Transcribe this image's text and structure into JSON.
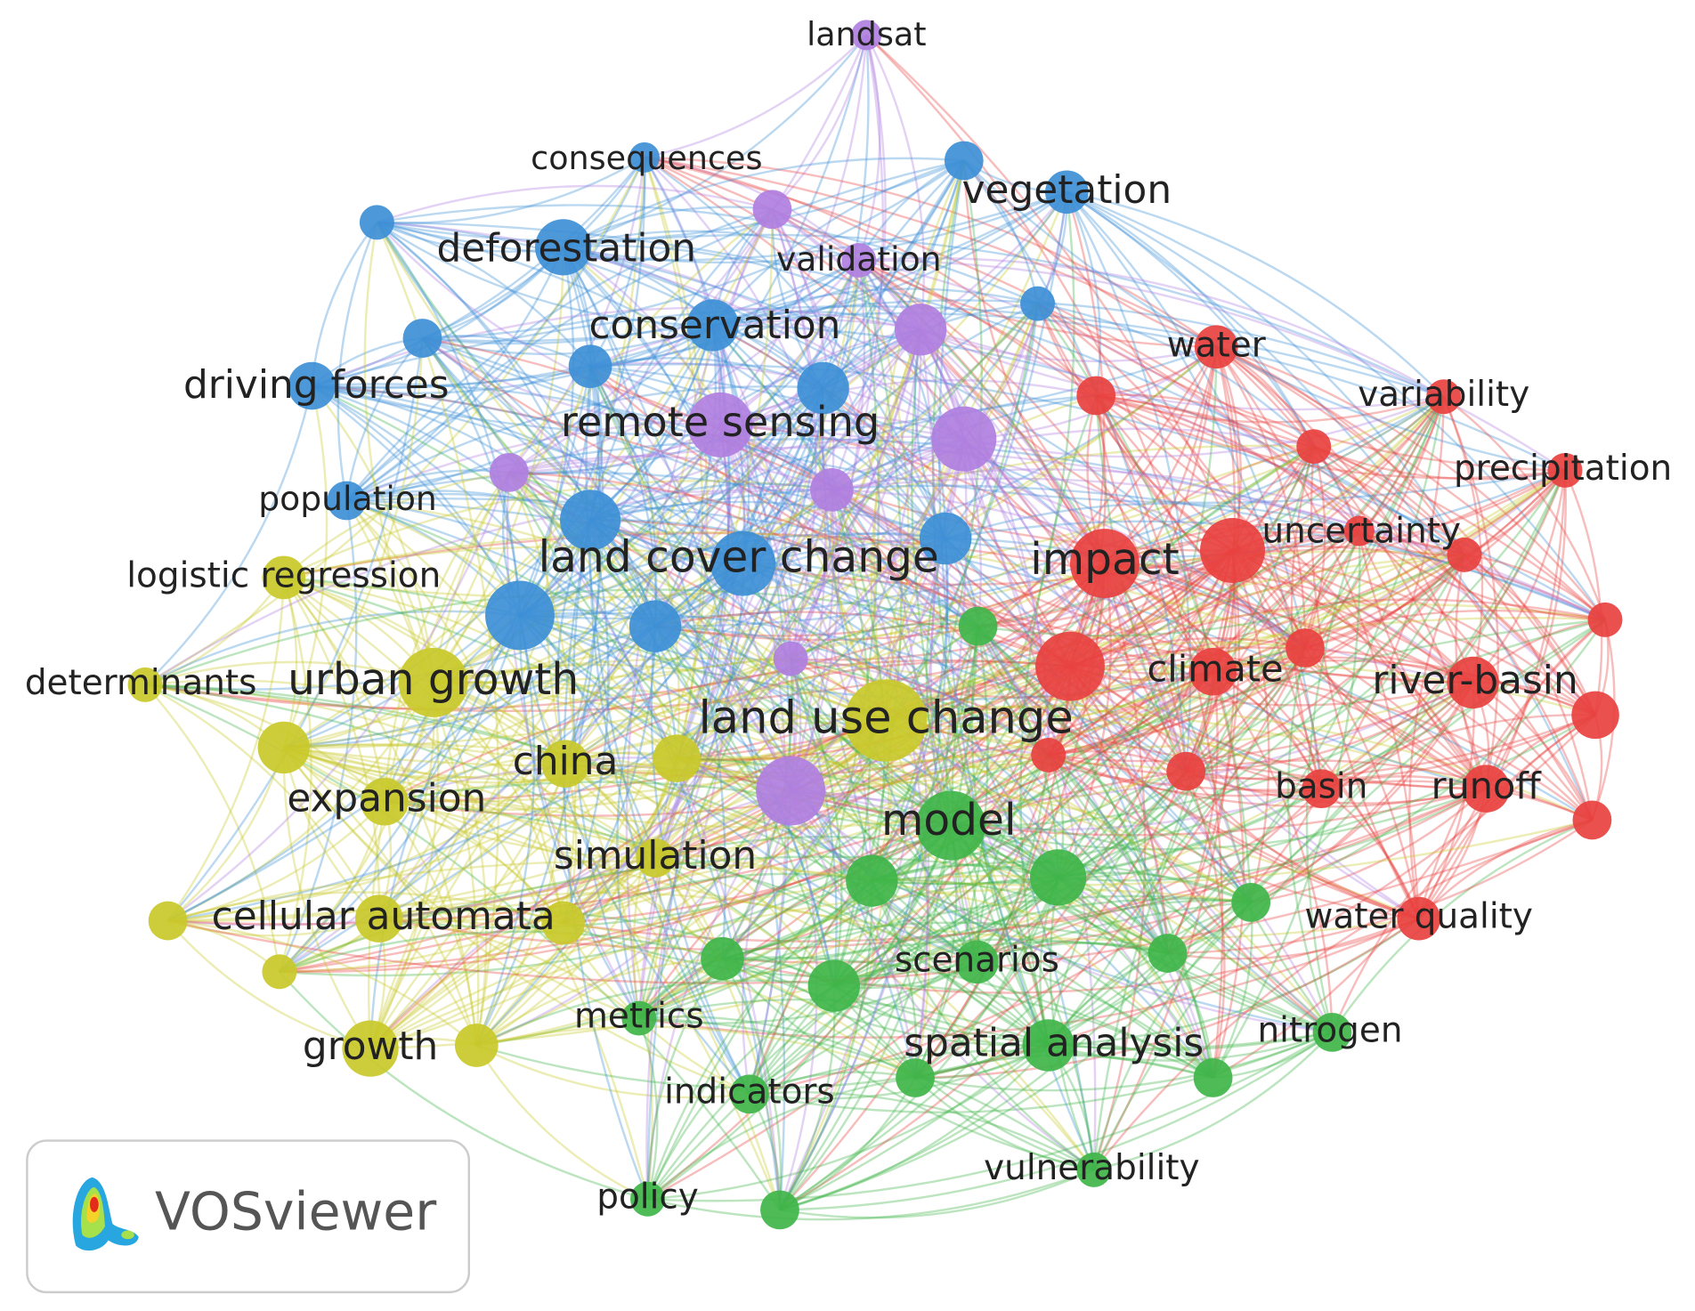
{
  "nodes": [
    {
      "label": "landsat"
    },
    {
      "label": "consequences"
    },
    {
      "label": "vegetation"
    },
    {
      "label": "deforestation"
    },
    {
      "label": "validation"
    },
    {
      "label": "conservation"
    },
    {
      "label": "water"
    },
    {
      "label": "driving forces"
    },
    {
      "label": "variability"
    },
    {
      "label": "remote sensing"
    },
    {
      "label": "precipitation"
    },
    {
      "label": "population"
    },
    {
      "label": "uncertainty"
    },
    {
      "label": "impact"
    },
    {
      "label": "land cover change"
    },
    {
      "label": "logistic regression"
    },
    {
      "label": "determinants"
    },
    {
      "label": "urban growth"
    },
    {
      "label": "climate"
    },
    {
      "label": "river-basin"
    },
    {
      "label": "land use change"
    },
    {
      "label": "china"
    },
    {
      "label": "expansion"
    },
    {
      "label": "basin"
    },
    {
      "label": "runoff"
    },
    {
      "label": "model"
    },
    {
      "label": "simulation"
    },
    {
      "label": "cellular automata"
    },
    {
      "label": "water quality"
    },
    {
      "label": "scenarios"
    },
    {
      "label": "metrics"
    },
    {
      "label": "nitrogen"
    },
    {
      "label": "spatial analysis"
    },
    {
      "label": "growth"
    },
    {
      "label": "indicators"
    },
    {
      "label": "vulnerability"
    },
    {
      "label": "policy"
    }
  ],
  "branding": {
    "text": "VOSviewer"
  }
}
